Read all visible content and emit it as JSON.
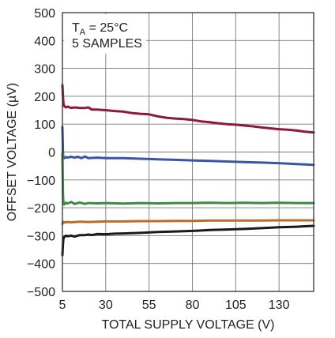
{
  "chart_data": {
    "type": "line",
    "title": "",
    "xlabel": "TOTAL SUPPLY VOLTAGE (V)",
    "ylabel": "OFFSET VOLTAGE (µV)",
    "xlim": [
      5,
      150
    ],
    "ylim": [
      -500,
      500
    ],
    "x_ticks": [
      5,
      30,
      55,
      80,
      105,
      130
    ],
    "x_tick_labels": [
      "5",
      "30",
      "55",
      "80",
      "105",
      "130"
    ],
    "y_ticks": [
      -500,
      -400,
      -300,
      -200,
      -100,
      0,
      100,
      200,
      300,
      400,
      500
    ],
    "y_tick_labels": [
      "−500",
      "−400",
      "−300",
      "−200",
      "−100",
      "0",
      "100",
      "200",
      "300",
      "400",
      "500"
    ],
    "x_grid": [
      5,
      30,
      55,
      80,
      105,
      130
    ],
    "y_grid": [
      -500,
      -400,
      -300,
      -200,
      -100,
      0,
      100,
      200,
      300,
      400,
      500
    ],
    "grid": true,
    "annotation": {
      "line1_main": "T",
      "line1_sub": "A",
      "line1_rest": " = 25°C",
      "line2": "5 SAMPLES"
    },
    "series": [
      {
        "color": "#8b1a3c",
        "x": [
          5,
          5.3,
          5.6,
          6,
          7,
          8,
          10,
          12,
          15,
          18,
          20,
          22,
          25,
          30,
          35,
          40,
          45,
          50,
          55,
          60,
          65,
          70,
          75,
          80,
          85,
          90,
          95,
          100,
          105,
          110,
          115,
          120,
          125,
          130,
          135,
          140,
          145,
          150
        ],
        "values": [
          240,
          200,
          175,
          165,
          160,
          163,
          158,
          160,
          158,
          158,
          160,
          152,
          152,
          150,
          147,
          145,
          140,
          137,
          135,
          128,
          123,
          120,
          118,
          115,
          110,
          107,
          103,
          100,
          98,
          95,
          92,
          88,
          85,
          82,
          80,
          77,
          73,
          70
        ]
      },
      {
        "color": "#3a55a4",
        "x": [
          5,
          5.3,
          5.6,
          6,
          7,
          8,
          10,
          12,
          14,
          16,
          18,
          20,
          25,
          30,
          40,
          50,
          60,
          70,
          80,
          90,
          100,
          110,
          120,
          130,
          140,
          150
        ],
        "values": [
          90,
          -5,
          -20,
          -22,
          -18,
          -20,
          -17,
          -20,
          -17,
          -22,
          -16,
          -22,
          -20,
          -22,
          -22,
          -24,
          -26,
          -28,
          -30,
          -32,
          -34,
          -36,
          -38,
          -40,
          -43,
          -46
        ]
      },
      {
        "color": "#3a8a46",
        "x": [
          5,
          5.3,
          5.6,
          6,
          7,
          8,
          10,
          12,
          15,
          18,
          20,
          25,
          30,
          40,
          50,
          60,
          70,
          80,
          90,
          100,
          110,
          120,
          130,
          140,
          150
        ],
        "values": [
          -5,
          -150,
          -185,
          -188,
          -182,
          -185,
          -179,
          -186,
          -181,
          -186,
          -183,
          -184,
          -183,
          -185,
          -183,
          -184,
          -183,
          -183,
          -182,
          -183,
          -182,
          -183,
          -182,
          -183,
          -183
        ]
      },
      {
        "color": "#b86d2c",
        "x": [
          5,
          5.3,
          5.6,
          6,
          8,
          10,
          15,
          20,
          30,
          40,
          50,
          60,
          70,
          80,
          90,
          100,
          110,
          120,
          130,
          140,
          150
        ],
        "values": [
          -258,
          -252,
          -250,
          -253,
          -251,
          -252,
          -250,
          -251,
          -249,
          -249,
          -248,
          -248,
          -247,
          -247,
          -246,
          -246,
          -246,
          -246,
          -245,
          -245,
          -245
        ]
      },
      {
        "color": "#1a1a1a",
        "x": [
          5,
          5.3,
          5.6,
          6,
          7,
          8,
          10,
          12,
          15,
          18,
          20,
          22,
          25,
          30,
          35,
          40,
          50,
          60,
          70,
          80,
          90,
          100,
          110,
          120,
          130,
          140,
          150
        ],
        "values": [
          -370,
          -330,
          -310,
          -305,
          -300,
          -302,
          -300,
          -303,
          -298,
          -298,
          -296,
          -298,
          -294,
          -295,
          -293,
          -292,
          -290,
          -287,
          -285,
          -283,
          -280,
          -278,
          -276,
          -273,
          -270,
          -268,
          -265
        ]
      }
    ]
  }
}
